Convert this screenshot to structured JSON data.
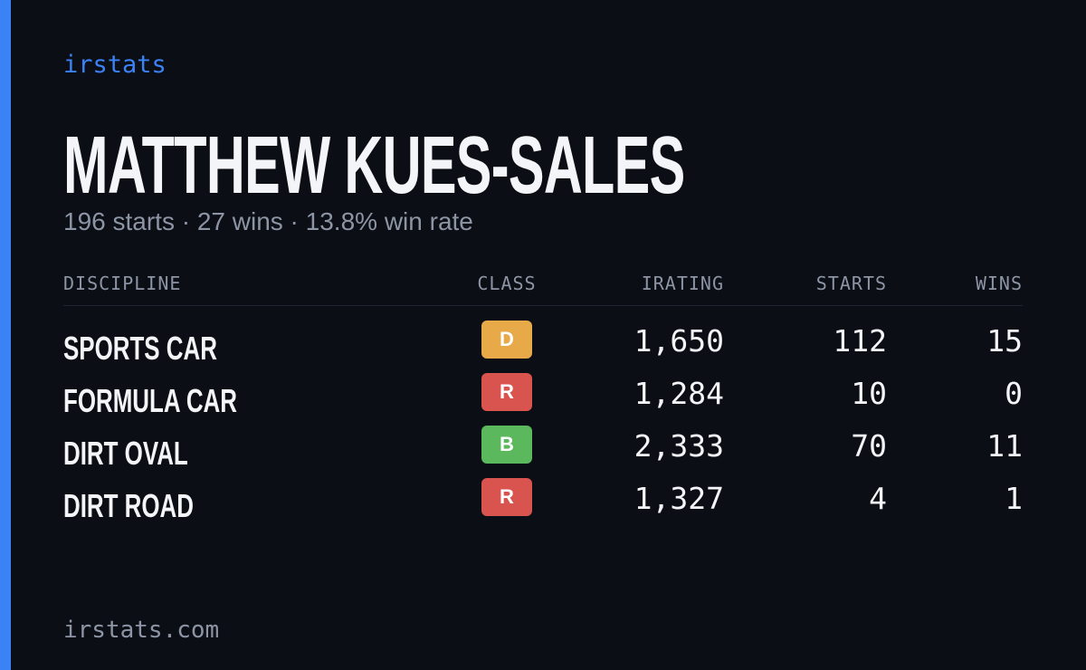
{
  "brand": "irstats",
  "title": "MATTHEW KUES-SALES",
  "subtitle": "196 starts · 27 wins · 13.8% win rate",
  "table": {
    "headers": [
      "DISCIPLINE",
      "CLASS",
      "IRATING",
      "STARTS",
      "WINS"
    ],
    "rows": [
      [
        "SPORTS CAR",
        "D",
        "1,650",
        "112",
        "15"
      ],
      [
        "FORMULA CAR",
        "R",
        "1,284",
        "10",
        "0"
      ],
      [
        "DIRT OVAL",
        "B",
        "2,333",
        "70",
        "11"
      ],
      [
        "DIRT ROAD",
        "R",
        "1,327",
        "4",
        "1"
      ]
    ],
    "class_colors": {
      "D": "#e8a948",
      "R": "#d9534f",
      "B": "#5cb85c"
    }
  },
  "footer": "irstats.com"
}
